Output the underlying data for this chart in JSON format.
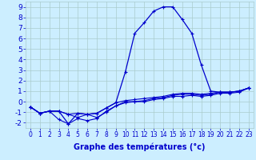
{
  "xlabel": "Graphe des températures (°c)",
  "hours": [
    0,
    1,
    2,
    3,
    4,
    5,
    6,
    7,
    8,
    9,
    10,
    11,
    12,
    13,
    14,
    15,
    16,
    17,
    18,
    19,
    20,
    21,
    22,
    23
  ],
  "line_main": [
    -0.5,
    -1.1,
    -0.9,
    -0.9,
    -2.1,
    -1.1,
    -1.2,
    -1.1,
    -0.6,
    -0.1,
    2.8,
    6.5,
    7.5,
    8.6,
    9.0,
    9.0,
    7.8,
    6.5,
    3.5,
    1.0,
    0.9,
    0.9,
    1.0,
    1.3
  ],
  "line2": [
    -0.5,
    -1.1,
    -0.9,
    -0.9,
    -1.2,
    -1.1,
    -1.2,
    -1.1,
    -0.6,
    -0.1,
    0.1,
    0.2,
    0.3,
    0.4,
    0.5,
    0.7,
    0.8,
    0.8,
    0.7,
    0.8,
    0.9,
    0.9,
    1.0,
    1.3
  ],
  "line3": [
    -0.5,
    -1.1,
    -0.9,
    -1.7,
    -2.1,
    -1.6,
    -1.8,
    -1.6,
    -0.9,
    -0.4,
    -0.1,
    0.0,
    0.0,
    0.2,
    0.3,
    0.5,
    0.5,
    0.6,
    0.5,
    0.6,
    0.8,
    0.8,
    0.9,
    1.3
  ],
  "line4": [
    -0.5,
    -1.1,
    -0.9,
    -0.9,
    -1.2,
    -1.5,
    -1.2,
    -1.5,
    -1.0,
    -0.4,
    0.0,
    0.0,
    0.1,
    0.3,
    0.4,
    0.6,
    0.7,
    0.7,
    0.6,
    0.7,
    0.9,
    0.9,
    1.0,
    1.3
  ],
  "line_color": "#0000cc",
  "bg_color": "#cceeff",
  "grid_color": "#aacccc",
  "ylim": [
    -2.5,
    9.5
  ],
  "yticks": [
    -2,
    -1,
    0,
    1,
    2,
    3,
    4,
    5,
    6,
    7,
    8,
    9
  ],
  "xticks": [
    0,
    1,
    2,
    3,
    4,
    5,
    6,
    7,
    8,
    9,
    10,
    11,
    12,
    13,
    14,
    15,
    16,
    17,
    18,
    19,
    20,
    21,
    22,
    23
  ],
  "xlabel_fontsize": 7,
  "tick_fontsize": 5.5,
  "ytick_fontsize": 6.5
}
